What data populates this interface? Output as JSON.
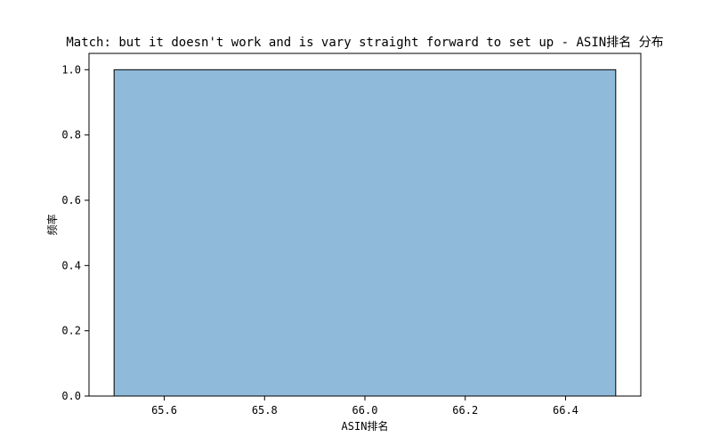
{
  "chart_data": {
    "type": "bar",
    "title": "Match: but it doesn't work and is vary straight forward to set up - ASIN排名 分布",
    "xlabel": "ASIN排名",
    "ylabel": "频率",
    "xlim": [
      65.45,
      66.55
    ],
    "ylim": [
      0,
      1.05
    ],
    "xticks": [
      "65.6",
      "65.8",
      "66.0",
      "66.2",
      "66.4"
    ],
    "yticks": [
      "0.0",
      "0.2",
      "0.4",
      "0.6",
      "0.8",
      "1.0"
    ],
    "bins": [
      {
        "x0": 65.5,
        "x1": 66.5,
        "value": 1.0
      }
    ],
    "bar_color": "#8fbad9",
    "grid": false
  }
}
